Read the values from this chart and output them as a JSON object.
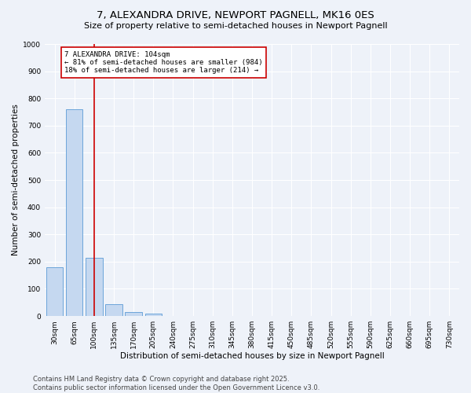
{
  "title": "7, ALEXANDRA DRIVE, NEWPORT PAGNELL, MK16 0ES",
  "subtitle": "Size of property relative to semi-detached houses in Newport Pagnell",
  "xlabel": "Distribution of semi-detached houses by size in Newport Pagnell",
  "ylabel": "Number of semi-detached properties",
  "categories": [
    "30sqm",
    "65sqm",
    "100sqm",
    "135sqm",
    "170sqm",
    "205sqm",
    "240sqm",
    "275sqm",
    "310sqm",
    "345sqm",
    "380sqm",
    "415sqm",
    "450sqm",
    "485sqm",
    "520sqm",
    "555sqm",
    "590sqm",
    "625sqm",
    "660sqm",
    "695sqm",
    "730sqm"
  ],
  "values": [
    180,
    760,
    215,
    45,
    15,
    8,
    0,
    0,
    0,
    0,
    0,
    0,
    0,
    0,
    0,
    0,
    0,
    0,
    0,
    0,
    0
  ],
  "bar_color": "#c5d8f0",
  "bar_edge_color": "#5b9bd5",
  "vline_x_index": 2,
  "vline_color": "#cc0000",
  "annotation_text": "7 ALEXANDRA DRIVE: 104sqm\n← 81% of semi-detached houses are smaller (984)\n18% of semi-detached houses are larger (214) →",
  "annotation_box_color": "#ffffff",
  "annotation_box_edge": "#cc0000",
  "ylim": [
    0,
    1000
  ],
  "yticks": [
    0,
    100,
    200,
    300,
    400,
    500,
    600,
    700,
    800,
    900,
    1000
  ],
  "background_color": "#eef2f9",
  "footer_text": "Contains HM Land Registry data © Crown copyright and database right 2025.\nContains public sector information licensed under the Open Government Licence v3.0.",
  "title_fontsize": 9.5,
  "subtitle_fontsize": 8,
  "xlabel_fontsize": 7.5,
  "ylabel_fontsize": 7.5,
  "tick_fontsize": 6.5,
  "annotation_fontsize": 6.5,
  "footer_fontsize": 6
}
